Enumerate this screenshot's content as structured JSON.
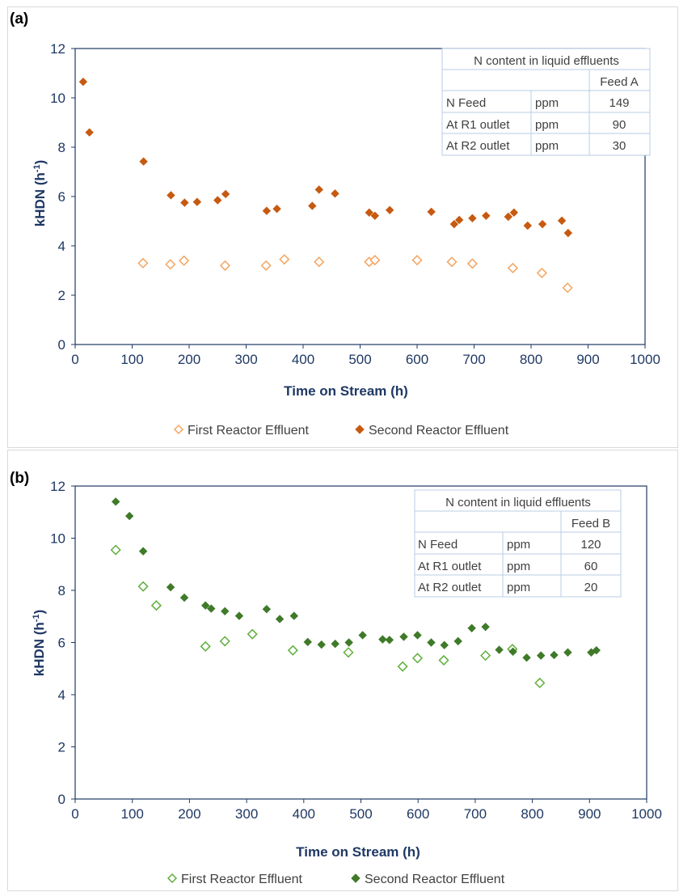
{
  "colors": {
    "axis": "#1f3864",
    "plot_border": "#1f3864",
    "table_border": "#b8cce4",
    "a_open": "#f4a460",
    "a_filled": "#c65a11",
    "b_open": "#5fae3c",
    "b_filled": "#3f7a29"
  },
  "chart_data": [
    {
      "panel_label": "(a)",
      "type": "scatter",
      "xlabel": "Time on Stream (h)",
      "ylabel": "kHDN (h-1)",
      "ylabel_main": "kHDN (h",
      "ylabel_sup": "-1",
      "ylabel_close": ")",
      "xlim": [
        0,
        1000
      ],
      "ylim": [
        0,
        12
      ],
      "xticks": [
        0,
        100,
        200,
        300,
        400,
        500,
        600,
        700,
        800,
        900,
        1000
      ],
      "yticks": [
        0,
        2,
        4,
        6,
        8,
        10,
        12
      ],
      "grid": false,
      "legend_position": "bottom",
      "series": [
        {
          "name": "First Reactor Effluent",
          "marker": "open-diamond",
          "points": [
            [
              119,
              3.3
            ],
            [
              167,
              3.25
            ],
            [
              191,
              3.4
            ],
            [
              263,
              3.2
            ],
            [
              335,
              3.2
            ],
            [
              367,
              3.45
            ],
            [
              428,
              3.35
            ],
            [
              516,
              3.35
            ],
            [
              526,
              3.42
            ],
            [
              600,
              3.42
            ],
            [
              661,
              3.35
            ],
            [
              697,
              3.28
            ],
            [
              768,
              3.1
            ],
            [
              819,
              2.9
            ],
            [
              864,
              2.3
            ]
          ]
        },
        {
          "name": "Second Reactor Effluent",
          "marker": "filled-diamond",
          "points": [
            [
              14,
              10.65
            ],
            [
              25,
              8.6
            ],
            [
              120,
              7.42
            ],
            [
              168,
              6.05
            ],
            [
              192,
              5.75
            ],
            [
              214,
              5.78
            ],
            [
              250,
              5.85
            ],
            [
              264,
              6.1
            ],
            [
              336,
              5.42
            ],
            [
              354,
              5.5
            ],
            [
              416,
              5.62
            ],
            [
              428,
              6.28
            ],
            [
              456,
              6.12
            ],
            [
              516,
              5.35
            ],
            [
              526,
              5.22
            ],
            [
              552,
              5.45
            ],
            [
              625,
              5.38
            ],
            [
              665,
              4.88
            ],
            [
              674,
              5.05
            ],
            [
              697,
              5.12
            ],
            [
              721,
              5.22
            ],
            [
              760,
              5.18
            ],
            [
              770,
              5.35
            ],
            [
              794,
              4.82
            ],
            [
              820,
              4.88
            ],
            [
              854,
              5.02
            ],
            [
              865,
              4.52
            ]
          ]
        }
      ],
      "table": {
        "title": "N content in liquid effluents",
        "feed_header": "Feed A",
        "rows": [
          {
            "label": "N Feed",
            "unit": "ppm",
            "value": "149"
          },
          {
            "label": "At R1 outlet",
            "unit": "ppm",
            "value": "90"
          },
          {
            "label": "At R2 outlet",
            "unit": "ppm",
            "value": "30"
          }
        ]
      }
    },
    {
      "panel_label": "(b)",
      "type": "scatter",
      "xlabel": "Time on Stream (h)",
      "ylabel": "kHDN (h-1)",
      "ylabel_main": "kHDN (h",
      "ylabel_sup": "-1",
      "ylabel_close": ")",
      "xlim": [
        0,
        1000
      ],
      "ylim": [
        0,
        12
      ],
      "xticks": [
        0,
        100,
        200,
        300,
        400,
        500,
        600,
        700,
        800,
        900,
        1000
      ],
      "yticks": [
        0,
        2,
        4,
        6,
        8,
        10,
        12
      ],
      "grid": false,
      "legend_position": "bottom",
      "series": [
        {
          "name": "First Reactor Effluent",
          "marker": "open-diamond",
          "points": [
            [
              71,
              9.55
            ],
            [
              119,
              8.15
            ],
            [
              142,
              7.42
            ],
            [
              228,
              5.85
            ],
            [
              262,
              6.05
            ],
            [
              310,
              6.32
            ],
            [
              381,
              5.7
            ],
            [
              478,
              5.62
            ],
            [
              573,
              5.08
            ],
            [
              599,
              5.4
            ],
            [
              645,
              5.32
            ],
            [
              718,
              5.5
            ],
            [
              765,
              5.75
            ],
            [
              813,
              4.45
            ]
          ]
        },
        {
          "name": "Second Reactor Effluent",
          "marker": "filled-diamond",
          "points": [
            [
              71,
              11.4
            ],
            [
              95,
              10.85
            ],
            [
              119,
              9.5
            ],
            [
              167,
              8.12
            ],
            [
              191,
              7.72
            ],
            [
              228,
              7.42
            ],
            [
              238,
              7.3
            ],
            [
              262,
              7.2
            ],
            [
              287,
              7.02
            ],
            [
              335,
              7.28
            ],
            [
              358,
              6.9
            ],
            [
              383,
              7.02
            ],
            [
              407,
              6.02
            ],
            [
              431,
              5.92
            ],
            [
              455,
              5.95
            ],
            [
              479,
              6.0
            ],
            [
              503,
              6.28
            ],
            [
              538,
              6.12
            ],
            [
              550,
              6.1
            ],
            [
              575,
              6.22
            ],
            [
              599,
              6.28
            ],
            [
              623,
              6.0
            ],
            [
              646,
              5.9
            ],
            [
              670,
              6.05
            ],
            [
              694,
              6.55
            ],
            [
              718,
              6.6
            ],
            [
              742,
              5.72
            ],
            [
              766,
              5.65
            ],
            [
              790,
              5.42
            ],
            [
              815,
              5.5
            ],
            [
              838,
              5.52
            ],
            [
              862,
              5.62
            ],
            [
              903,
              5.62
            ],
            [
              912,
              5.7
            ]
          ]
        }
      ],
      "table": {
        "title": "N content in liquid effluents",
        "feed_header": "Feed B",
        "rows": [
          {
            "label": "N Feed",
            "unit": "ppm",
            "value": "120"
          },
          {
            "label": "At R1 outlet",
            "unit": "ppm",
            "value": "60"
          },
          {
            "label": "At R2 outlet",
            "unit": "ppm",
            "value": "20"
          }
        ]
      }
    }
  ]
}
